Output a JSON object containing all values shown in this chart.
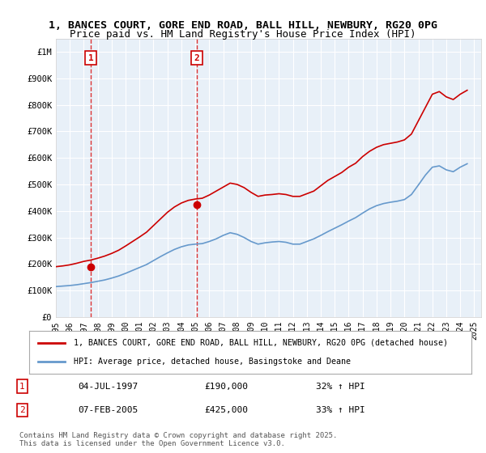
{
  "title_line1": "1, BANCES COURT, GORE END ROAD, BALL HILL, NEWBURY, RG20 0PG",
  "title_line2": "Price paid vs. HM Land Registry's House Price Index (HPI)",
  "ylabel": "",
  "background_color": "#e8f0f8",
  "plot_bg_color": "#e8f0f8",
  "legend_label_red": "1, BANCES COURT, GORE END ROAD, BALL HILL, NEWBURY, RG20 0PG (detached house)",
  "legend_label_blue": "HPI: Average price, detached house, Basingstoke and Deane",
  "footer": "Contains HM Land Registry data © Crown copyright and database right 2025.\nThis data is licensed under the Open Government Licence v3.0.",
  "transaction1_label": "1",
  "transaction1_date": "04-JUL-1997",
  "transaction1_price": "£190,000",
  "transaction1_hpi": "32% ↑ HPI",
  "transaction2_label": "2",
  "transaction2_date": "07-FEB-2005",
  "transaction2_price": "£425,000",
  "transaction2_hpi": "33% ↑ HPI",
  "transaction1_x": 1997.5,
  "transaction1_y": 190000,
  "transaction2_x": 2005.1,
  "transaction2_y": 425000,
  "ylim_max": 1050000,
  "xlim_min": 1995,
  "xlim_max": 2025.5,
  "red_color": "#cc0000",
  "blue_color": "#6699cc",
  "dashed_red": "#dd3333",
  "red_hpi_years": [
    1995,
    1995.5,
    1996,
    1996.5,
    1997,
    1997.5,
    1998,
    1998.5,
    1999,
    1999.5,
    2000,
    2000.5,
    2001,
    2001.5,
    2002,
    2002.5,
    2003,
    2003.5,
    2004,
    2004.5,
    2005,
    2005.5,
    2006,
    2006.5,
    2007,
    2007.5,
    2008,
    2008.5,
    2009,
    2009.5,
    2010,
    2010.5,
    2011,
    2011.5,
    2012,
    2012.5,
    2013,
    2013.5,
    2014,
    2014.5,
    2015,
    2015.5,
    2016,
    2016.5,
    2017,
    2017.5,
    2018,
    2018.5,
    2019,
    2019.5,
    2020,
    2020.5,
    2021,
    2021.5,
    2022,
    2022.5,
    2023,
    2023.5,
    2024,
    2024.5
  ],
  "red_hpi_values": [
    190000,
    193000,
    197000,
    203000,
    210000,
    215000,
    222000,
    230000,
    240000,
    252000,
    268000,
    285000,
    302000,
    320000,
    345000,
    370000,
    395000,
    415000,
    430000,
    440000,
    445000,
    448000,
    460000,
    475000,
    490000,
    505000,
    500000,
    488000,
    470000,
    455000,
    460000,
    462000,
    465000,
    462000,
    455000,
    455000,
    465000,
    475000,
    495000,
    515000,
    530000,
    545000,
    565000,
    580000,
    605000,
    625000,
    640000,
    650000,
    655000,
    660000,
    668000,
    690000,
    740000,
    790000,
    840000,
    850000,
    830000,
    820000,
    840000,
    855000
  ],
  "blue_hpi_years": [
    1995,
    1995.5,
    1996,
    1996.5,
    1997,
    1997.5,
    1998,
    1998.5,
    1999,
    1999.5,
    2000,
    2000.5,
    2001,
    2001.5,
    2002,
    2002.5,
    2003,
    2003.5,
    2004,
    2004.5,
    2005,
    2005.5,
    2006,
    2006.5,
    2007,
    2007.5,
    2008,
    2008.5,
    2009,
    2009.5,
    2010,
    2010.5,
    2011,
    2011.5,
    2012,
    2012.5,
    2013,
    2013.5,
    2014,
    2014.5,
    2015,
    2015.5,
    2016,
    2016.5,
    2017,
    2017.5,
    2018,
    2018.5,
    2019,
    2019.5,
    2020,
    2020.5,
    2021,
    2021.5,
    2022,
    2022.5,
    2023,
    2023.5,
    2024,
    2024.5
  ],
  "blue_hpi_values": [
    115000,
    117000,
    119000,
    122000,
    126000,
    130000,
    135000,
    140000,
    147000,
    155000,
    165000,
    176000,
    187000,
    198000,
    213000,
    228000,
    242000,
    255000,
    265000,
    272000,
    275000,
    277000,
    285000,
    295000,
    308000,
    318000,
    312000,
    300000,
    285000,
    275000,
    280000,
    283000,
    285000,
    282000,
    275000,
    275000,
    285000,
    295000,
    308000,
    322000,
    335000,
    348000,
    362000,
    375000,
    392000,
    408000,
    420000,
    428000,
    433000,
    437000,
    443000,
    462000,
    498000,
    535000,
    565000,
    570000,
    555000,
    548000,
    565000,
    578000
  ],
  "yticks": [
    0,
    100000,
    200000,
    300000,
    400000,
    500000,
    600000,
    700000,
    800000,
    900000,
    1000000
  ],
  "xticks": [
    1995,
    1996,
    1997,
    1998,
    1999,
    2000,
    2001,
    2002,
    2003,
    2004,
    2005,
    2006,
    2007,
    2008,
    2009,
    2010,
    2011,
    2012,
    2013,
    2014,
    2015,
    2016,
    2017,
    2018,
    2019,
    2020,
    2021,
    2022,
    2023,
    2024,
    2025
  ]
}
